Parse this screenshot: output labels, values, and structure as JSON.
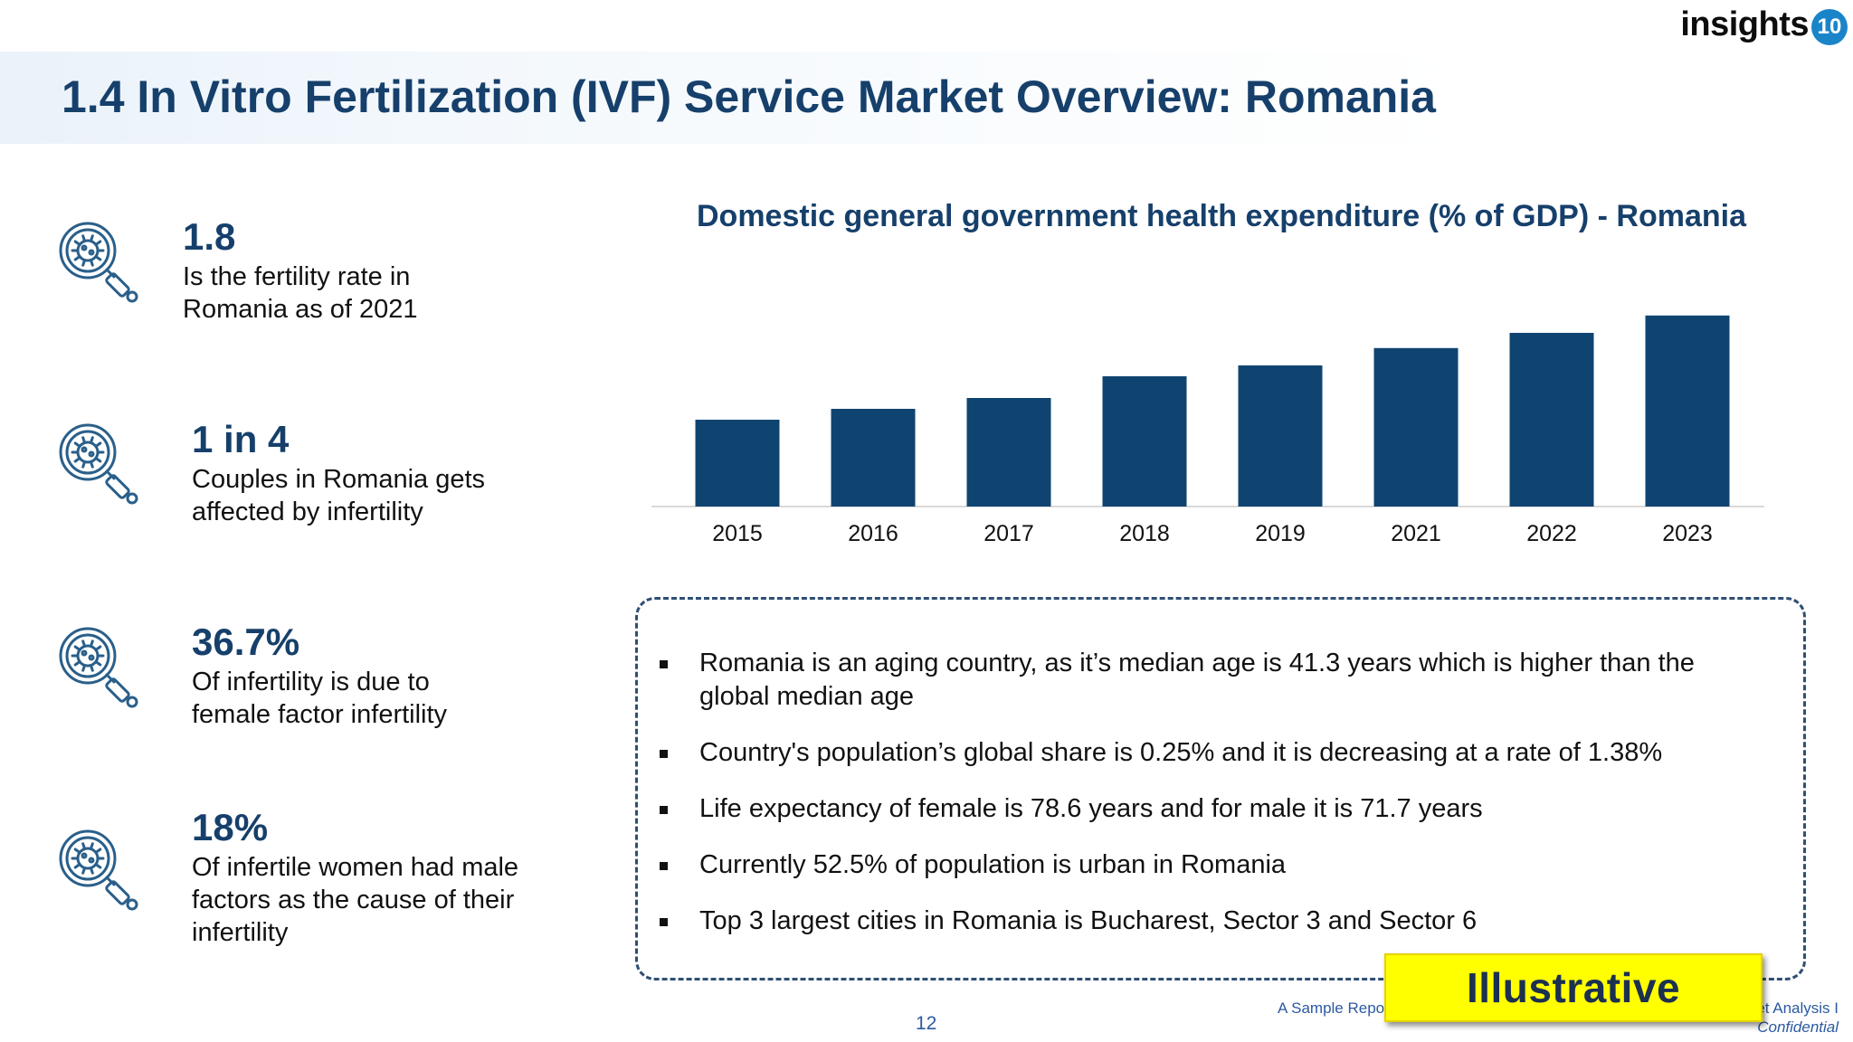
{
  "logo": {
    "word": "insights",
    "badge": "10"
  },
  "title": "1.4 In Vitro Fertilization (IVF) Service Market Overview: Romania",
  "stats": [
    {
      "value": "1.8",
      "desc_lines": [
        "Is the fertility rate in",
        "Romania as of 2021"
      ],
      "icon": "magnifier-virus-icon"
    },
    {
      "value": "1 in 4",
      "desc_lines": [
        "Couples in Romania gets",
        "affected by infertility"
      ],
      "icon": "magnifier-virus-icon"
    },
    {
      "value": "36.7%",
      "desc_lines": [
        "Of infertility is due to",
        "female factor infertility"
      ],
      "icon": "magnifier-virus-icon"
    },
    {
      "value": "18%",
      "desc_lines": [
        "Of infertile women had male",
        "factors as the cause of their",
        "infertility"
      ],
      "icon": "magnifier-virus-icon"
    }
  ],
  "chart_data": {
    "type": "bar",
    "title": "Domestic general government health expenditure (% of GDP) - Romania",
    "categories": [
      "2015",
      "2016",
      "2017",
      "2018",
      "2019",
      "2021",
      "2022",
      "2023"
    ],
    "values": [
      4.0,
      4.5,
      5.0,
      6.0,
      6.5,
      7.3,
      8.0,
      8.8
    ],
    "ylim": [
      0,
      10
    ],
    "bar_color": "#0f4470",
    "grid": false,
    "legend": "none"
  },
  "bullets": [
    "Romania is an aging country, as it’s median age is 41.3 years which is higher than the global median age",
    "Country's population’s global share is 0.25% and it is decreasing at a rate of 1.38%",
    "Life expectancy of female is 78.6 years and for male it is 71.7 years",
    "Currently 52.5% of population is urban in Romania",
    "Top 3 largest cities in Romania is Bucharest, Sector 3 and Sector 6"
  ],
  "stamp": "Illustrative",
  "footer": {
    "left_fragment": "A Sample Repo",
    "right_fragment": "et Analysis I",
    "confidential": "Confidential",
    "page_number": "12"
  },
  "colors": {
    "title": "#16406b",
    "accent": "#1a84c9",
    "icon_stroke": "#2a5f8a"
  }
}
